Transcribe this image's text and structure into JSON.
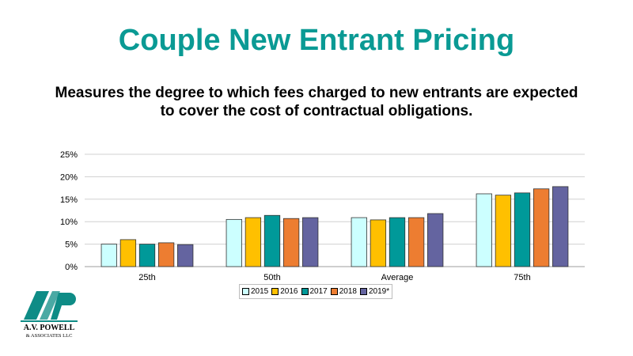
{
  "header": {
    "title": "Couple New Entrant Pricing",
    "subtitle": "Measures the degree to which fees charged to new entrants are expected to cover the cost of contractual obligations."
  },
  "logo": {
    "line1": "A.V. POWELL",
    "line2": "& ASSOCIATES LLC",
    "color": "#0e8c86"
  },
  "chart_data": {
    "type": "bar",
    "categories": [
      "25th",
      "50th",
      "Average",
      "75th"
    ],
    "series": [
      {
        "name": "2015",
        "color": "#ccffff",
        "values": [
          5.0,
          10.5,
          10.9,
          16.2
        ]
      },
      {
        "name": "2016",
        "color": "#ffc000",
        "values": [
          6.0,
          10.9,
          10.4,
          15.9
        ]
      },
      {
        "name": "2017",
        "color": "#009999",
        "values": [
          5.0,
          11.4,
          10.9,
          16.4
        ]
      },
      {
        "name": "2018",
        "color": "#ed7d31",
        "values": [
          5.3,
          10.7,
          10.9,
          17.3
        ]
      },
      {
        "name": "2019*",
        "color": "#6464a0",
        "values": [
          4.9,
          10.9,
          11.8,
          17.8
        ]
      }
    ],
    "y_ticks": [
      "0%",
      "5%",
      "10%",
      "15%",
      "20%",
      "25%"
    ],
    "ylim": [
      0,
      25
    ],
    "grid": true,
    "legend_position": "bottom"
  }
}
